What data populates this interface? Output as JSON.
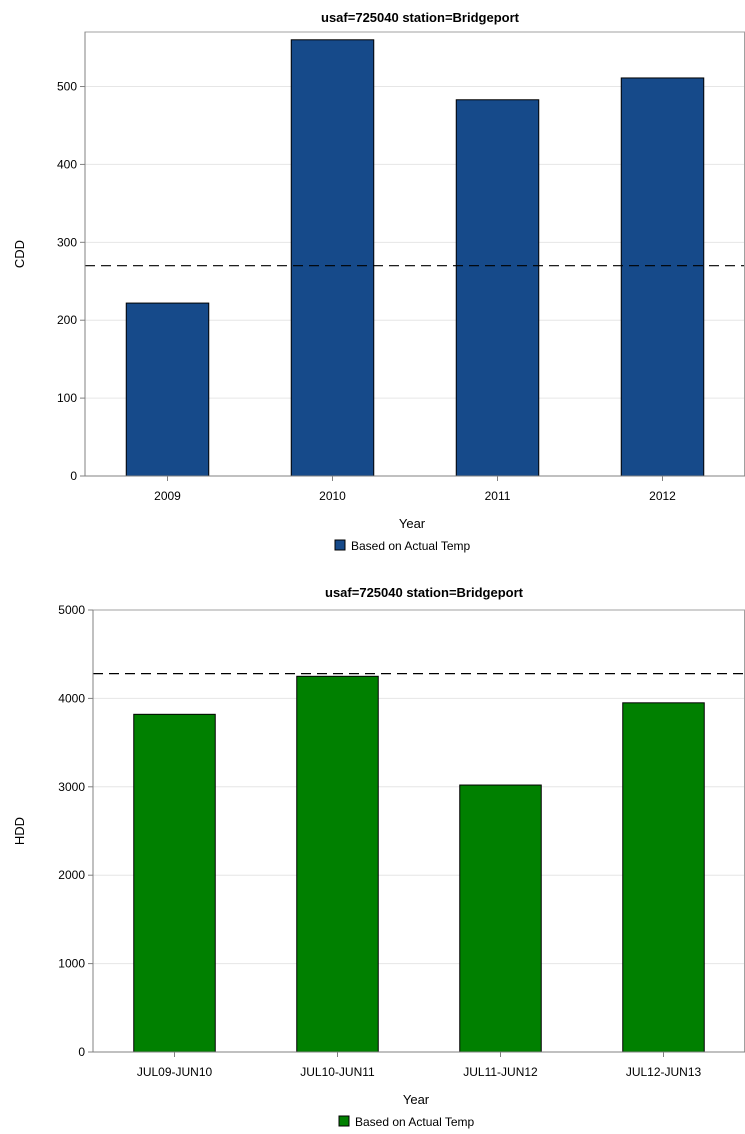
{
  "chart_data": [
    {
      "type": "bar",
      "title": "usaf=725040 station=Bridgeport",
      "xlabel": "Year",
      "ylabel": "CDD",
      "categories": [
        "2009",
        "2010",
        "2011",
        "2012"
      ],
      "series": [
        {
          "name": "Based on Actual Temp",
          "values": [
            222,
            560,
            483,
            511
          ],
          "color": "#164a8a"
        }
      ],
      "reference_line": 270,
      "ylim": [
        0,
        570
      ],
      "yticks": [
        0,
        100,
        200,
        300,
        400,
        500
      ],
      "grid": true,
      "legend_position": "bottom"
    },
    {
      "type": "bar",
      "title": "usaf=725040 station=Bridgeport",
      "xlabel": "Year",
      "ylabel": "HDD",
      "categories": [
        "JUL09-JUN10",
        "JUL10-JUN11",
        "JUL11-JUN12",
        "JUL12-JUN13"
      ],
      "series": [
        {
          "name": "Based on Actual Temp",
          "values": [
            3820,
            4250,
            3020,
            3950
          ],
          "color": "#008000"
        }
      ],
      "reference_line": 4280,
      "ylim": [
        0,
        5000
      ],
      "yticks": [
        0,
        1000,
        2000,
        3000,
        4000,
        5000
      ],
      "grid": true,
      "legend_position": "bottom"
    }
  ]
}
